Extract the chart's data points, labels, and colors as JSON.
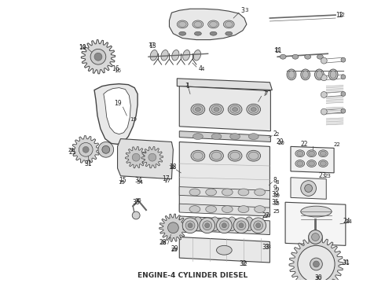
{
  "title": "ENGINE-4 CYLINDER DIESEL",
  "title_fontsize": 6.5,
  "title_color": "#333333",
  "background_color": "#ffffff",
  "figsize": [
    4.9,
    3.6
  ],
  "dpi": 100,
  "line_color": "#444444",
  "light_gray": "#cccccc",
  "mid_gray": "#aaaaaa",
  "dark_gray": "#666666"
}
